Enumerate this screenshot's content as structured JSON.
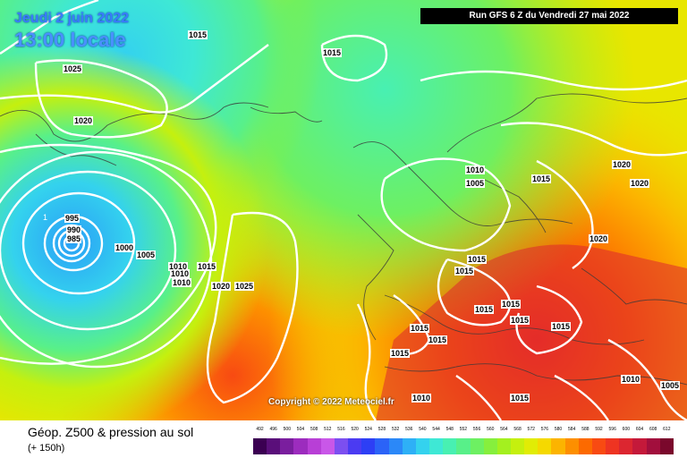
{
  "header": {
    "date": "Jeudi 2 juin 2022",
    "time": "13:00 locale",
    "run": "Run GFS 6 Z du Vendredi 27 mai 2022"
  },
  "copyright": "Copyright © 2022 Meteociel.fr",
  "footer": {
    "title": "Géop. Z500 & pression au sol",
    "subtitle": "(+ 150h)"
  },
  "legend": {
    "ticks": [
      "492",
      "496",
      "500",
      "504",
      "508",
      "512",
      "516",
      "520",
      "524",
      "528",
      "532",
      "536",
      "540",
      "544",
      "548",
      "552",
      "556",
      "560",
      "564",
      "568",
      "572",
      "576",
      "580",
      "584",
      "588",
      "592",
      "596",
      "600",
      "604",
      "608",
      "612"
    ],
    "colors": [
      "#3b0052",
      "#5a0f7a",
      "#7a1e9e",
      "#9c2cbe",
      "#b83fd6",
      "#c957e8",
      "#7c4ff0",
      "#4b3bf2",
      "#2d3ff5",
      "#2b63f7",
      "#2b88f8",
      "#2eb0f6",
      "#34d2ee",
      "#3ee8d5",
      "#48f0b2",
      "#58f089",
      "#6df062",
      "#86ef3d",
      "#a4f01f",
      "#c5f00e",
      "#e1ec05",
      "#f5d900",
      "#fcb400",
      "#fd8f00",
      "#fc6a00",
      "#f84a12",
      "#ee3422",
      "#dc2630",
      "#c4193a",
      "#a20f3d",
      "#7a082c"
    ]
  },
  "isobars": [
    "1015",
    "1025",
    "1020",
    "1015",
    "995",
    "990",
    "985",
    "1000",
    "1005",
    "1010",
    "1010",
    "1010",
    "1015",
    "1020",
    "1025",
    "1010",
    "1005",
    "1015",
    "1020",
    "1020",
    "1020",
    "1015",
    "1015",
    "1015",
    "1015",
    "1015",
    "1015",
    "1015",
    "1015",
    "1015",
    "1010",
    "1015",
    "1010",
    "1005"
  ]
}
